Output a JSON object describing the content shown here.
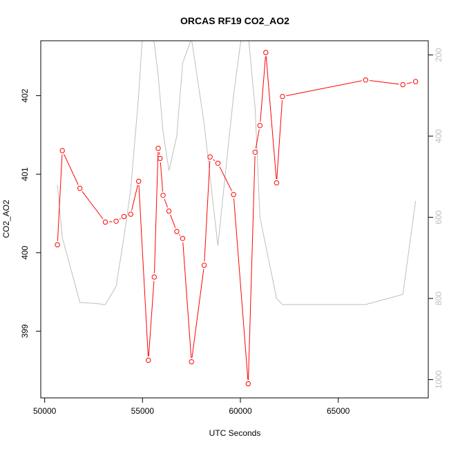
{
  "chart_data": {
    "type": "line",
    "title": "ORCAS RF19 CO2_AO2",
    "xlabel": "UTC Seconds",
    "ylabel": "CO2_AO2",
    "xlim": [
      49800,
      69600
    ],
    "ylim": [
      398.15,
      402.7
    ],
    "y2lim": [
      1045,
      165
    ],
    "y2_reversed": true,
    "xticks": [
      50000,
      55000,
      60000,
      65000
    ],
    "xtick_labels": [
      "50000",
      "55000",
      "60000",
      "65000"
    ],
    "yticks": [
      399,
      400,
      401,
      402
    ],
    "ytick_labels": [
      "399",
      "400",
      "401",
      "402"
    ],
    "y2ticks": [
      200,
      400,
      600,
      800,
      1000
    ],
    "y2tick_labels": [
      "200",
      "400",
      "600",
      "800",
      "1000"
    ],
    "grid": false,
    "colors": {
      "co2": "#ff0000",
      "secondary": "#bebebe",
      "axis": "#000000"
    },
    "series": [
      {
        "axis": "left",
        "color": "#ff0000",
        "marker": "open-circle",
        "x": [
          50650,
          50900,
          51800,
          53100,
          53650,
          54050,
          54400,
          54800,
          55300,
          55600,
          55800,
          55900,
          56050,
          56350,
          56750,
          57050,
          57500,
          58150,
          58450,
          58850,
          59650,
          60400,
          60750,
          61000,
          61300,
          61850,
          62150,
          66400,
          68300,
          68950
        ],
        "values": [
          400.1,
          401.3,
          400.82,
          400.39,
          400.4,
          400.46,
          400.49,
          400.91,
          398.63,
          399.69,
          401.33,
          401.2,
          400.73,
          400.53,
          400.27,
          400.18,
          398.61,
          399.84,
          401.22,
          401.14,
          400.74,
          398.33,
          401.28,
          401.62,
          402.55,
          400.89,
          401.99,
          402.2,
          402.14,
          402.18
        ]
      },
      {
        "axis": "right",
        "color": "#bebebe",
        "marker": "none",
        "x": [
          50650,
          50900,
          51800,
          52500,
          53100,
          53650,
          54050,
          54400,
          54800,
          55000,
          55300,
          55600,
          55800,
          56050,
          56350,
          56750,
          57050,
          57500,
          58150,
          58850,
          59650,
          60050,
          60400,
          60750,
          61000,
          61850,
          62150,
          66400,
          68300,
          68950
        ],
        "values": [
          520,
          650,
          810,
          812,
          815,
          770,
          650,
          530,
          300,
          150,
          130,
          170,
          250,
          390,
          485,
          400,
          220,
          160,
          370,
          670,
          300,
          155,
          150,
          330,
          600,
          800,
          815,
          815,
          790,
          560
        ]
      }
    ]
  }
}
